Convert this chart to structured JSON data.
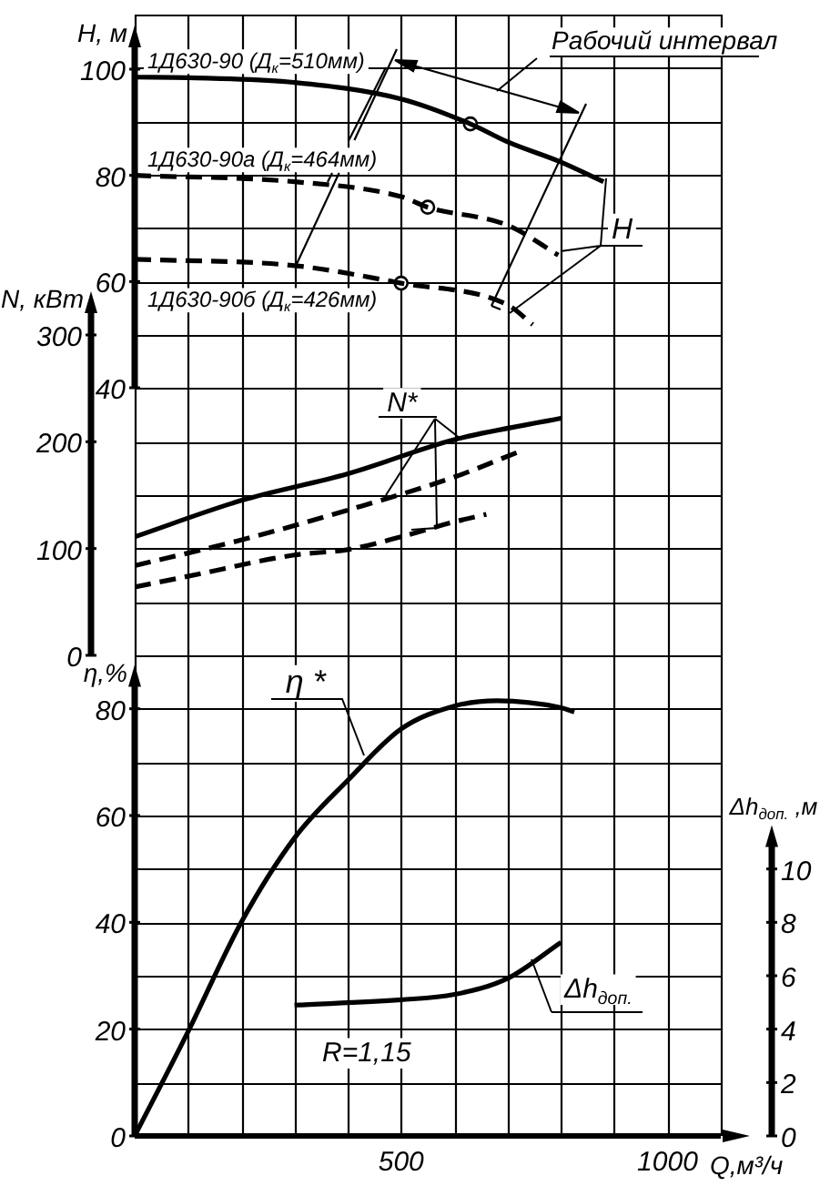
{
  "chart_data": [
    {
      "type": "line",
      "ylabel": "H, м",
      "xlim": [
        0,
        1100
      ],
      "ylim": [
        40,
        100
      ],
      "yticks": [
        40,
        60,
        80,
        100
      ],
      "tick_labels": "y",
      "marker": "none",
      "series": [
        {
          "name": "1Д630-90 (Д$_{к}$=510мм)",
          "type": "line",
          "color": "#000000",
          "line_style": "solid",
          "x": [
            0,
            100,
            300,
            500,
            630,
            700,
            800,
            880
          ],
          "values": [
            98.5,
            98.4,
            97.5,
            94.4,
            89.7,
            86.3,
            82.5,
            78.8
          ]
        },
        {
          "name": "1Д630-90а (Д$_{к}$=464мм)",
          "type": "line",
          "color": "#000000",
          "line_style": "dashed",
          "x": [
            0,
            300,
            500,
            550,
            700,
            795
          ],
          "values": [
            80,
            78.8,
            76,
            74,
            70.6,
            65
          ]
        },
        {
          "name": "1Д630-90б (Д$_{к}$=426мм)",
          "type": "line",
          "color": "#000000",
          "line_style": "dashed",
          "x": [
            0,
            300,
            500,
            700,
            747
          ],
          "values": [
            64.2,
            63,
            59.7,
            55.6,
            51.9
          ]
        },
        {
          "type": "scatter",
          "color": "#000000",
          "marker": "circle",
          "x": [
            630,
            550,
            500
          ],
          "values": [
            89.7,
            74,
            59.7
          ]
        }
      ],
      "annotations": [
        "Рабочий интервал",
        "H"
      ]
    },
    {
      "type": "line",
      "ylabel": "N, кВт",
      "xlim": [
        0,
        1100
      ],
      "ylim": [
        0,
        300
      ],
      "yticks": [
        0,
        100,
        200,
        300
      ],
      "tick_labels": "y",
      "marker": "none",
      "series": [
        {
          "type": "line",
          "color": "#000000",
          "line_style": "solid",
          "x": [
            0,
            200,
            400,
            600,
            800
          ],
          "values": [
            111,
            145,
            170,
            202,
            222
          ]
        },
        {
          "type": "line",
          "color": "#000000",
          "line_style": "dashed",
          "x": [
            0,
            200,
            400,
            600,
            718
          ],
          "values": [
            84,
            108,
            136,
            167,
            190
          ]
        },
        {
          "type": "line",
          "color": "#000000",
          "line_style": "dashed",
          "x": [
            0,
            100,
            300,
            400,
            500,
            600,
            660
          ],
          "values": [
            64,
            74,
            94,
            99,
            111,
            125,
            132
          ]
        }
      ],
      "annotations": [
        {
          "text": "N*",
          "x": 610,
          "y": 203
        }
      ]
    },
    {
      "type": "line",
      "xlabel": "Q,м³/ч",
      "ylabel": "η,%",
      "y2label": "Δh$_{доп.}$ ,м",
      "xlim": [
        0,
        1100
      ],
      "xticks": [
        {
          "value": 0,
          "label": null
        },
        {
          "value": 100,
          "label": null
        },
        {
          "value": 200,
          "label": null
        },
        {
          "value": 300,
          "label": null
        },
        {
          "value": 400,
          "label": null
        },
        500,
        {
          "value": 600,
          "label": null
        },
        {
          "value": 700,
          "label": null
        },
        {
          "value": 800,
          "label": null
        },
        {
          "value": 900,
          "label": null
        },
        1000,
        {
          "value": 1100,
          "label": null
        }
      ],
      "ylim": [
        0,
        210
      ],
      "yticks": [
        0,
        {
          "value": 10,
          "label": null
        },
        20,
        {
          "value": 30,
          "label": null
        },
        40,
        {
          "value": 50,
          "label": null
        },
        60,
        {
          "value": 70,
          "label": null
        },
        80,
        {
          "value": 90,
          "label": null
        },
        {
          "value": 100,
          "label": null
        },
        {
          "value": 110,
          "label": null
        },
        {
          "value": 120,
          "label": null
        },
        {
          "value": 130,
          "label": null
        },
        {
          "value": 140,
          "label": null
        },
        {
          "value": 150,
          "label": null
        },
        {
          "value": 160,
          "label": null
        },
        {
          "value": 170,
          "label": null
        },
        {
          "value": 180,
          "label": null
        },
        {
          "value": 190,
          "label": null
        },
        {
          "value": 200,
          "label": null
        },
        {
          "value": 210,
          "label": null
        }
      ],
      "y2lim": [
        0,
        42
      ],
      "y2ticks": [
        0,
        2,
        4,
        6,
        8,
        10
      ],
      "grid": true,
      "marker": "none",
      "series": [
        {
          "type": "line",
          "color": "#000000",
          "line_style": "solid",
          "x": [
            0,
            100,
            200,
            300,
            400,
            500,
            600,
            680,
            800,
            825
          ],
          "values": [
            0,
            19.5,
            40,
            55.8,
            66.6,
            76.2,
            80.5,
            81.5,
            80.2,
            79.4
          ]
        },
        {
          "type": "line",
          "axis": "y2",
          "color": "#000000",
          "line_style": "solid",
          "x": [
            300,
            500,
            600,
            700,
            800
          ],
          "values": [
            4.9,
            5.1,
            5.3,
            5.9,
            7.25
          ]
        }
      ],
      "annotations": [
        {
          "text": "η *",
          "x": 430,
          "y": 70
        },
        "Δh$_{доп.}$",
        "R=1,15"
      ]
    }
  ]
}
